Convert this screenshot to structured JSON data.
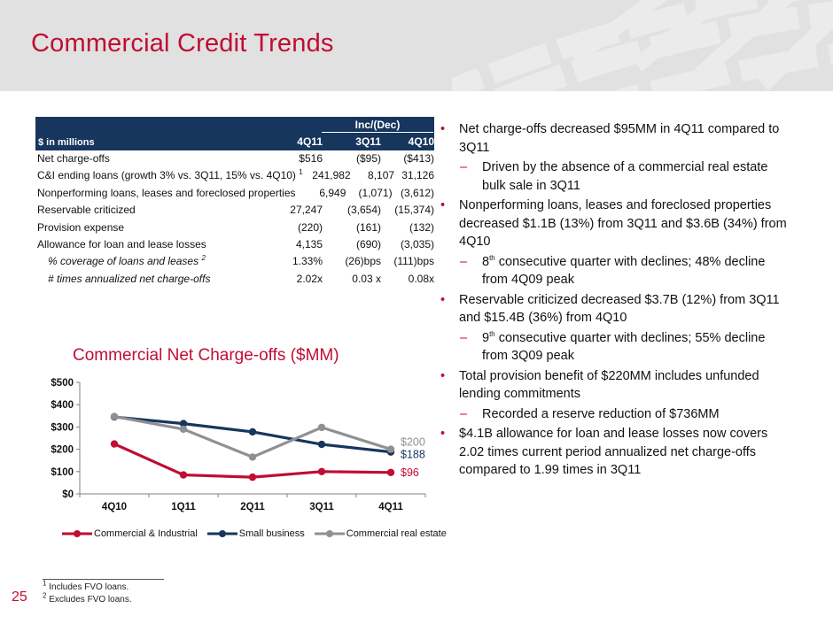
{
  "slide": {
    "title": "Commercial Credit Trends",
    "page_number": "25"
  },
  "colors": {
    "accent_red": "#c00d33",
    "navy": "#17365d",
    "series_gray": "#8f9092",
    "header_bg": "#e1e1e1",
    "watermark": "#ebebeb",
    "axis_gray": "#7f7f7f"
  },
  "table": {
    "unit_label": "$ in millions",
    "inc_dec_label": "Inc/(Dec)",
    "col_headers": [
      "4Q11",
      "3Q11",
      "4Q10"
    ],
    "rows": [
      {
        "label": "Net charge-offs",
        "sup": "",
        "style": "normal",
        "vals": [
          "$516",
          "($95)",
          "($413)"
        ]
      },
      {
        "label": "C&I ending loans (growth 3% vs. 3Q11, 15% vs. 4Q10)",
        "sup": "1",
        "style": "normal",
        "vals": [
          "241,982",
          "8,107",
          "31,126"
        ]
      },
      {
        "label": "Nonperforming loans, leases and foreclosed properties",
        "sup": "",
        "style": "normal",
        "vals": [
          "6,949",
          "(1,071)",
          "(3,612)"
        ]
      },
      {
        "label": "Reservable criticized",
        "sup": "",
        "style": "normal",
        "vals": [
          "27,247",
          "(3,654)",
          "(15,374)"
        ]
      },
      {
        "label": "Provision expense",
        "sup": "",
        "style": "normal",
        "vals": [
          "(220)",
          "(161)",
          "(132)"
        ]
      },
      {
        "label": "Allowance for loan and lease losses",
        "sup": "",
        "style": "normal",
        "vals": [
          "4,135",
          "(690)",
          "(3,035)"
        ]
      },
      {
        "label": "% coverage of loans and leases",
        "sup": "2",
        "style": "italic",
        "vals": [
          "1.33%",
          "(26)bps",
          "(111)bps"
        ]
      },
      {
        "label": "# times annualized net charge-offs",
        "sup": "",
        "style": "italic",
        "vals": [
          "2.02x",
          "0.03 x",
          "0.08x"
        ]
      }
    ]
  },
  "bullets": [
    {
      "level": 1,
      "text": "Net charge-offs decreased $95MM in 4Q11 compared to 3Q11"
    },
    {
      "level": 2,
      "text": "Driven by the absence of a commercial real estate bulk sale in 3Q11"
    },
    {
      "level": 1,
      "text": "Nonperforming loans, leases and foreclosed properties decreased $1.1B (13%) from 3Q11 and $3.6B (34%) from 4Q10"
    },
    {
      "level": 2,
      "text": "8^th^ consecutive quarter with declines; 48% decline from 4Q09 peak"
    },
    {
      "level": 1,
      "text": "Reservable criticized decreased $3.7B (12%) from 3Q11 and $15.4B (36%) from 4Q10"
    },
    {
      "level": 2,
      "text": "9^th^ consecutive quarter with declines; 55% decline from 3Q09 peak"
    },
    {
      "level": 1,
      "text": "Total provision benefit of $220MM includes unfunded lending commitments"
    },
    {
      "level": 2,
      "text": "Recorded a reserve reduction of $736MM"
    },
    {
      "level": 1,
      "text": "$4.1B allowance for loan and lease losses now covers 2.02 times current period annualized net charge-offs compared to 1.99 times in 3Q11"
    }
  ],
  "chart_data": {
    "type": "line",
    "title": "Commercial Net Charge-offs ($MM)",
    "categories": [
      "4Q10",
      "1Q11",
      "2Q11",
      "3Q11",
      "4Q11"
    ],
    "series": [
      {
        "name": "Commercial & Industrial",
        "color": "#c00d33",
        "values": [
          224,
          85,
          75,
          100,
          96
        ],
        "end_label": "$96"
      },
      {
        "name": "Small business",
        "color": "#17365d",
        "values": [
          345,
          315,
          278,
          222,
          188
        ],
        "end_label": "$188"
      },
      {
        "name": "Commercial real estate",
        "color": "#8f9092",
        "values": [
          347,
          290,
          165,
          298,
          200
        ],
        "end_label": "$200"
      }
    ],
    "ylim": [
      0,
      500
    ],
    "ytick_step": 100,
    "ytick_labels": [
      "$0",
      "$100",
      "$200",
      "$300",
      "$400",
      "$500"
    ],
    "grid": false,
    "legend_position": "bottom"
  },
  "footnotes": [
    {
      "sup": "1",
      "text": " Includes FVO loans."
    },
    {
      "sup": "2",
      "text": " Excludes FVO loans."
    }
  ]
}
